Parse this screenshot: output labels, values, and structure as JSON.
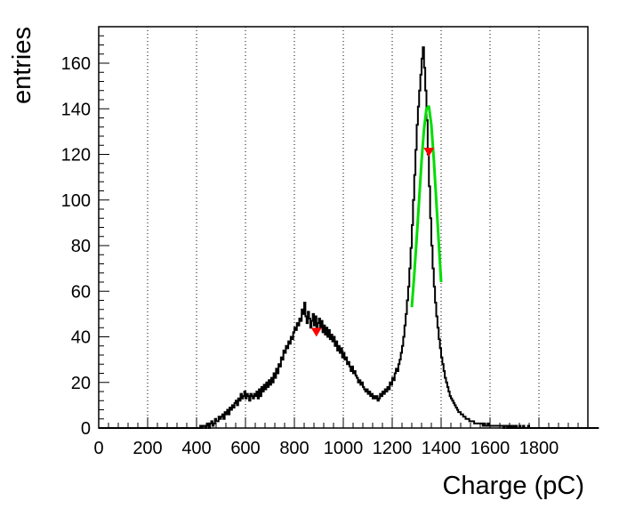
{
  "chart_data": {
    "type": "histogram",
    "title": "",
    "xlabel": "Charge (pC)",
    "ylabel": "entries",
    "xlim": [
      0,
      2000
    ],
    "ylim": [
      0,
      176
    ],
    "x_ticks": [
      0,
      200,
      400,
      600,
      800,
      1000,
      1200,
      1400,
      1600,
      1800
    ],
    "x_tick_labels": [
      "0",
      "200",
      "400",
      "600",
      "800",
      "1000",
      "1200",
      "1400",
      "1600",
      "1800"
    ],
    "y_ticks": [
      0,
      20,
      40,
      60,
      80,
      100,
      120,
      140,
      160
    ],
    "y_tick_labels": [
      "0",
      "20",
      "40",
      "60",
      "80",
      "100",
      "120",
      "140",
      "160"
    ],
    "x_grid": "dotted vertical lines at major x ticks",
    "y_grid": false,
    "bin_width": 5,
    "bin_start": 0,
    "series": [
      {
        "color": "#000000",
        "counts": [
          0,
          0,
          0,
          0,
          0,
          0,
          0,
          0,
          0,
          0,
          0,
          0,
          0,
          0,
          0,
          0,
          0,
          0,
          0,
          0,
          0,
          0,
          0,
          0,
          0,
          0,
          0,
          0,
          0,
          0,
          0,
          0,
          0,
          0,
          0,
          0,
          0,
          0,
          0,
          0,
          0,
          0,
          0,
          0,
          0,
          0,
          0,
          0,
          0,
          0,
          0,
          0,
          0,
          0,
          0,
          0,
          0,
          0,
          0,
          0,
          0,
          0,
          0,
          0,
          0,
          0,
          0,
          0,
          0,
          0,
          0,
          0,
          0,
          0,
          0,
          0,
          0,
          0,
          0,
          0,
          0,
          0,
          0,
          1,
          0,
          1,
          1,
          0,
          1,
          2,
          0,
          2,
          3,
          1,
          2,
          4,
          3,
          3,
          5,
          4,
          5,
          6,
          4,
          7,
          6,
          8,
          6,
          9,
          8,
          10,
          9,
          11,
          12,
          10,
          13,
          12,
          15,
          13,
          14,
          16,
          13,
          15,
          14,
          12,
          15,
          14,
          13,
          15,
          14,
          16,
          13,
          17,
          14,
          18,
          16,
          19,
          17,
          20,
          18,
          21,
          19,
          22,
          20,
          24,
          22,
          26,
          24,
          28,
          27,
          31,
          30,
          34,
          33,
          36,
          35,
          38,
          37,
          40,
          39,
          42,
          44,
          43,
          46,
          45,
          48,
          47,
          52,
          50,
          55,
          49,
          46,
          51,
          48,
          44,
          47,
          50,
          45,
          49,
          43,
          46,
          48,
          44,
          47,
          42,
          45,
          41,
          44,
          40,
          43,
          39,
          41,
          38,
          40,
          36,
          38,
          34,
          36,
          33,
          35,
          31,
          33,
          30,
          31,
          28,
          29,
          27,
          25,
          27,
          24,
          25,
          23,
          22,
          20,
          21,
          19,
          20,
          18,
          17,
          16,
          17,
          15,
          16,
          14,
          15,
          13,
          14,
          13,
          14,
          12,
          13,
          15,
          14,
          16,
          15,
          17,
          16,
          18,
          17,
          20,
          19,
          22,
          21,
          24,
          26,
          25,
          28,
          30,
          33,
          36,
          40,
          45,
          50,
          56,
          62,
          70,
          79,
          89,
          100,
          111,
          122,
          133,
          141,
          148,
          155,
          162,
          167,
          158,
          148,
          135,
          120,
          106,
          92,
          80,
          70,
          62,
          55,
          49,
          44,
          39,
          35,
          31,
          28,
          25,
          22,
          20,
          18,
          16,
          14,
          13,
          12,
          11,
          10,
          9,
          8,
          7,
          7,
          6,
          6,
          5,
          5,
          4,
          4,
          4,
          3,
          3,
          3,
          3,
          2,
          2,
          2,
          2,
          2,
          2,
          2,
          1,
          2,
          1,
          1,
          2,
          1,
          1,
          1,
          1,
          1,
          1,
          1,
          1,
          1,
          1,
          1,
          1,
          0,
          1,
          1,
          0,
          1,
          0,
          1,
          0,
          1,
          0,
          1,
          0,
          0,
          1,
          0,
          0,
          1,
          0,
          0,
          0,
          1,
          0,
          0,
          0,
          0,
          0,
          0,
          0,
          0,
          0,
          0,
          0,
          0,
          0,
          0,
          0,
          0,
          0,
          0,
          0,
          0,
          0,
          0,
          0,
          0,
          0,
          0,
          0,
          0,
          0,
          0,
          0,
          0,
          0,
          0,
          0,
          0,
          0,
          0,
          0,
          0,
          0,
          0,
          0,
          0,
          0,
          0,
          0,
          0,
          0,
          0,
          0,
          0,
          0,
          0,
          0,
          0,
          0
        ]
      },
      {
        "type": "line",
        "color": "#00dd00",
        "fit_range": [
          1280,
          1400
        ],
        "x": [
          1280,
          1290,
          1300,
          1310,
          1320,
          1330,
          1340,
          1350,
          1360,
          1370,
          1380,
          1390,
          1400
        ],
        "y": [
          53,
          67,
          83,
          100,
          117,
          131,
          140,
          141,
          133,
          118,
          100,
          82,
          64
        ]
      }
    ],
    "markers": [
      {
        "color": "#ff0000",
        "x": 890,
        "y": 42,
        "symbol": "down-triangle"
      },
      {
        "color": "#ff0000",
        "x": 1350,
        "y": 121,
        "symbol": "down-triangle"
      }
    ]
  }
}
